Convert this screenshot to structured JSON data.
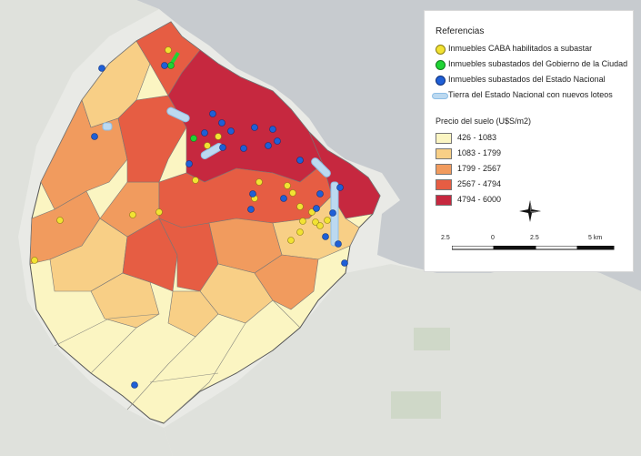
{
  "legend": {
    "title": "Referencias",
    "points": [
      {
        "label": "Inmuebles CABA habilitados a subastar",
        "color": "#f2e233"
      },
      {
        "label": "Inmuebles subastados del Gobierno de la Ciudad",
        "color": "#1fd334"
      },
      {
        "label": "Inmuebles subastados del Estado Nacional",
        "color": "#1f5fd6"
      },
      {
        "label": "Tierra del Estado Nacional con nuevos loteos",
        "color": "#bcd9f0"
      }
    ],
    "price_title": "Precio del suelo (U$S/m2)",
    "classes": [
      {
        "label": "426 - 1083",
        "color": "#fbf5c2"
      },
      {
        "label": "1083 - 1799",
        "color": "#f8cf86"
      },
      {
        "label": "1799 - 2567",
        "color": "#f19b5e"
      },
      {
        "label": "2567 - 4794",
        "color": "#e65d43"
      },
      {
        "label": "4794 - 6000",
        "color": "#c6283f"
      }
    ],
    "scale_labels": [
      "2.5",
      "0",
      "2.5",
      "5 km"
    ]
  },
  "icons": {
    "north_arrow": "compass-star-icon"
  }
}
